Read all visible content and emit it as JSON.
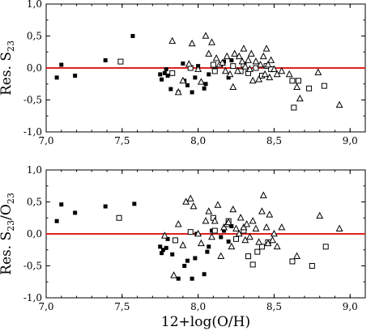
{
  "chart_data": [
    {
      "type": "scatter",
      "ylabel": {
        "main": "Res. S",
        "sub": "23",
        "tail": ""
      },
      "xlabel": "",
      "xlim": [
        7.0,
        9.1
      ],
      "ylim": [
        -1.0,
        1.0
      ],
      "xticks": [
        "7,0",
        "7,5",
        "8,0",
        "8,5",
        "9,0"
      ],
      "xtick_values": [
        7.0,
        7.5,
        8.0,
        8.5,
        9.0
      ],
      "yticks": [
        "1,0",
        "0,5",
        "0,0",
        "-0,5",
        "-1,0"
      ],
      "ytick_values": [
        1.0,
        0.5,
        0.0,
        -0.5,
        -1.0
      ],
      "reference_line": {
        "y": 0.0,
        "color": "#e02020"
      },
      "series": [
        {
          "marker": "filled-square",
          "color": "#000000",
          "points": [
            [
              7.07,
              -0.15
            ],
            [
              7.1,
              0.05
            ],
            [
              7.19,
              -0.12
            ],
            [
              7.39,
              0.12
            ],
            [
              7.57,
              0.5
            ],
            [
              7.75,
              -0.1
            ],
            [
              7.76,
              -0.18
            ],
            [
              7.78,
              -0.08
            ],
            [
              7.79,
              -0.02
            ],
            [
              7.8,
              -0.12
            ],
            [
              7.82,
              -0.33
            ],
            [
              7.87,
              -0.38
            ],
            [
              7.9,
              0.07
            ],
            [
              7.91,
              -0.2
            ],
            [
              7.93,
              -0.27
            ],
            [
              7.96,
              -0.38
            ],
            [
              7.98,
              -0.15
            ],
            [
              8.0,
              0.03
            ],
            [
              8.04,
              -0.32
            ],
            [
              8.05,
              -0.25
            ],
            [
              8.07,
              -0.1
            ],
            [
              8.11,
              -0.03
            ],
            [
              8.15,
              0.05
            ],
            [
              8.17,
              0.1
            ],
            [
              8.2,
              -0.15
            ],
            [
              8.22,
              0.12
            ]
          ]
        },
        {
          "marker": "open-square",
          "color": "#000000",
          "points": [
            [
              7.49,
              0.1
            ],
            [
              7.83,
              -0.08
            ],
            [
              7.95,
              0.0
            ],
            [
              8.1,
              0.05
            ],
            [
              8.11,
              -0.05
            ],
            [
              8.23,
              0.03
            ],
            [
              8.28,
              -0.05
            ],
            [
              8.3,
              0.05
            ],
            [
              8.33,
              -0.08
            ],
            [
              8.38,
              0.0
            ],
            [
              8.42,
              -0.12
            ],
            [
              8.45,
              0.03
            ],
            [
              8.48,
              -0.02
            ],
            [
              8.62,
              -0.2
            ],
            [
              8.63,
              -0.62
            ],
            [
              8.66,
              -0.2
            ],
            [
              8.73,
              -0.32
            ],
            [
              8.83,
              -0.28
            ]
          ]
        },
        {
          "marker": "open-triangle",
          "color": "#000000",
          "points": [
            [
              7.83,
              0.42
            ],
            [
              7.87,
              -0.38
            ],
            [
              7.9,
              -0.2
            ],
            [
              7.94,
              0.06
            ],
            [
              7.96,
              0.38
            ],
            [
              8.0,
              -0.02
            ],
            [
              8.02,
              -0.22
            ],
            [
              8.05,
              0.5
            ],
            [
              8.07,
              0.22
            ],
            [
              8.09,
              0.4
            ],
            [
              8.12,
              0.15
            ],
            [
              8.14,
              0.05
            ],
            [
              8.16,
              0.08
            ],
            [
              8.18,
              -0.05
            ],
            [
              8.19,
              0.18
            ],
            [
              8.21,
              -0.1
            ],
            [
              8.23,
              -0.3
            ],
            [
              8.24,
              0.22
            ],
            [
              8.26,
              -0.05
            ],
            [
              8.27,
              0.18
            ],
            [
              8.29,
              0.1
            ],
            [
              8.3,
              0.3
            ],
            [
              8.31,
              0.02
            ],
            [
              8.33,
              0.12
            ],
            [
              8.34,
              -0.02
            ],
            [
              8.35,
              0.22
            ],
            [
              8.36,
              -0.2
            ],
            [
              8.38,
              0.1
            ],
            [
              8.4,
              -0.18
            ],
            [
              8.41,
              0.05
            ],
            [
              8.43,
              0.18
            ],
            [
              8.44,
              -0.1
            ],
            [
              8.45,
              0.3
            ],
            [
              8.46,
              0.05
            ],
            [
              8.47,
              -0.15
            ],
            [
              8.48,
              0.12
            ],
            [
              8.5,
              -0.02
            ],
            [
              8.52,
              -0.1
            ],
            [
              8.55,
              -0.05
            ],
            [
              8.6,
              -0.1
            ],
            [
              8.65,
              -0.3
            ],
            [
              8.67,
              -0.48
            ],
            [
              8.79,
              -0.07
            ],
            [
              8.93,
              -0.58
            ]
          ]
        }
      ]
    },
    {
      "type": "scatter",
      "ylabel": {
        "main": "Res. S",
        "sub": "23",
        "tail": "/O",
        "sub2": "23"
      },
      "xlabel": "12+log(O/H)",
      "xlim": [
        7.0,
        9.1
      ],
      "ylim": [
        -1.0,
        1.0
      ],
      "xticks": [
        "7,0",
        "7,5",
        "8,0",
        "8,5",
        "9,0"
      ],
      "xtick_values": [
        7.0,
        7.5,
        8.0,
        8.5,
        9.0
      ],
      "yticks": [
        "1,0",
        "0,5",
        "0,0",
        "-0,5",
        "-1,0"
      ],
      "ytick_values": [
        1.0,
        0.5,
        0.0,
        -0.5,
        -1.0
      ],
      "reference_line": {
        "y": 0.0,
        "color": "#e02020"
      },
      "series": [
        {
          "marker": "filled-square",
          "color": "#000000",
          "points": [
            [
              7.07,
              0.2
            ],
            [
              7.1,
              0.46
            ],
            [
              7.19,
              0.33
            ],
            [
              7.39,
              0.43
            ],
            [
              7.58,
              0.47
            ],
            [
              7.75,
              -0.2
            ],
            [
              7.76,
              -0.3
            ],
            [
              7.77,
              -0.25
            ],
            [
              7.79,
              -0.22
            ],
            [
              7.8,
              -0.08
            ],
            [
              7.83,
              -0.32
            ],
            [
              7.87,
              -0.7
            ],
            [
              7.91,
              -0.5
            ],
            [
              7.93,
              -0.42
            ],
            [
              7.96,
              -0.7
            ],
            [
              7.98,
              -0.38
            ],
            [
              7.99,
              0.0
            ],
            [
              8.04,
              -0.63
            ],
            [
              8.06,
              -0.28
            ],
            [
              8.07,
              -0.2
            ],
            [
              8.09,
              0.05
            ],
            [
              8.15,
              -0.05
            ],
            [
              8.17,
              0.05
            ],
            [
              8.2,
              -0.12
            ],
            [
              8.22,
              0.12
            ]
          ]
        },
        {
          "marker": "open-square",
          "color": "#000000",
          "points": [
            [
              7.48,
              0.25
            ],
            [
              7.85,
              -0.1
            ],
            [
              7.95,
              0.03
            ],
            [
              8.1,
              0.25
            ],
            [
              8.11,
              0.05
            ],
            [
              8.2,
              0.2
            ],
            [
              8.25,
              -0.08
            ],
            [
              8.3,
              0.05
            ],
            [
              8.33,
              -0.35
            ],
            [
              8.36,
              -0.48
            ],
            [
              8.39,
              -0.28
            ],
            [
              8.42,
              -0.2
            ],
            [
              8.46,
              -0.13
            ],
            [
              8.62,
              -0.43
            ],
            [
              8.75,
              -0.5
            ],
            [
              8.84,
              -0.2
            ]
          ]
        },
        {
          "marker": "open-triangle",
          "color": "#000000",
          "points": [
            [
              7.78,
              -0.03
            ],
            [
              7.84,
              -0.65
            ],
            [
              7.87,
              0.15
            ],
            [
              7.9,
              -0.18
            ],
            [
              7.92,
              0.5
            ],
            [
              7.95,
              0.55
            ],
            [
              7.97,
              0.43
            ],
            [
              8.0,
              0.0
            ],
            [
              8.02,
              -0.15
            ],
            [
              8.05,
              0.2
            ],
            [
              8.07,
              0.35
            ],
            [
              8.09,
              -0.05
            ],
            [
              8.11,
              0.2
            ],
            [
              8.13,
              0.45
            ],
            [
              8.15,
              -0.35
            ],
            [
              8.17,
              0.1
            ],
            [
              8.19,
              0.15
            ],
            [
              8.2,
              0.18
            ],
            [
              8.22,
              -0.2
            ],
            [
              8.23,
              0.38
            ],
            [
              8.25,
              0.08
            ],
            [
              8.27,
              0.0
            ],
            [
              8.28,
              0.25
            ],
            [
              8.3,
              0.1
            ],
            [
              8.31,
              -0.1
            ],
            [
              8.32,
              0.15
            ],
            [
              8.34,
              -0.05
            ],
            [
              8.36,
              0.2
            ],
            [
              8.38,
              0.08
            ],
            [
              8.4,
              -0.13
            ],
            [
              8.42,
              0.35
            ],
            [
              8.43,
              0.6
            ],
            [
              8.45,
              0.1
            ],
            [
              8.46,
              -0.15
            ],
            [
              8.47,
              0.3
            ],
            [
              8.49,
              -0.1
            ],
            [
              8.5,
              0.0
            ],
            [
              8.52,
              -0.2
            ],
            [
              8.55,
              0.1
            ],
            [
              8.65,
              -0.35
            ],
            [
              8.8,
              0.28
            ],
            [
              8.93,
              0.08
            ]
          ]
        }
      ]
    }
  ]
}
